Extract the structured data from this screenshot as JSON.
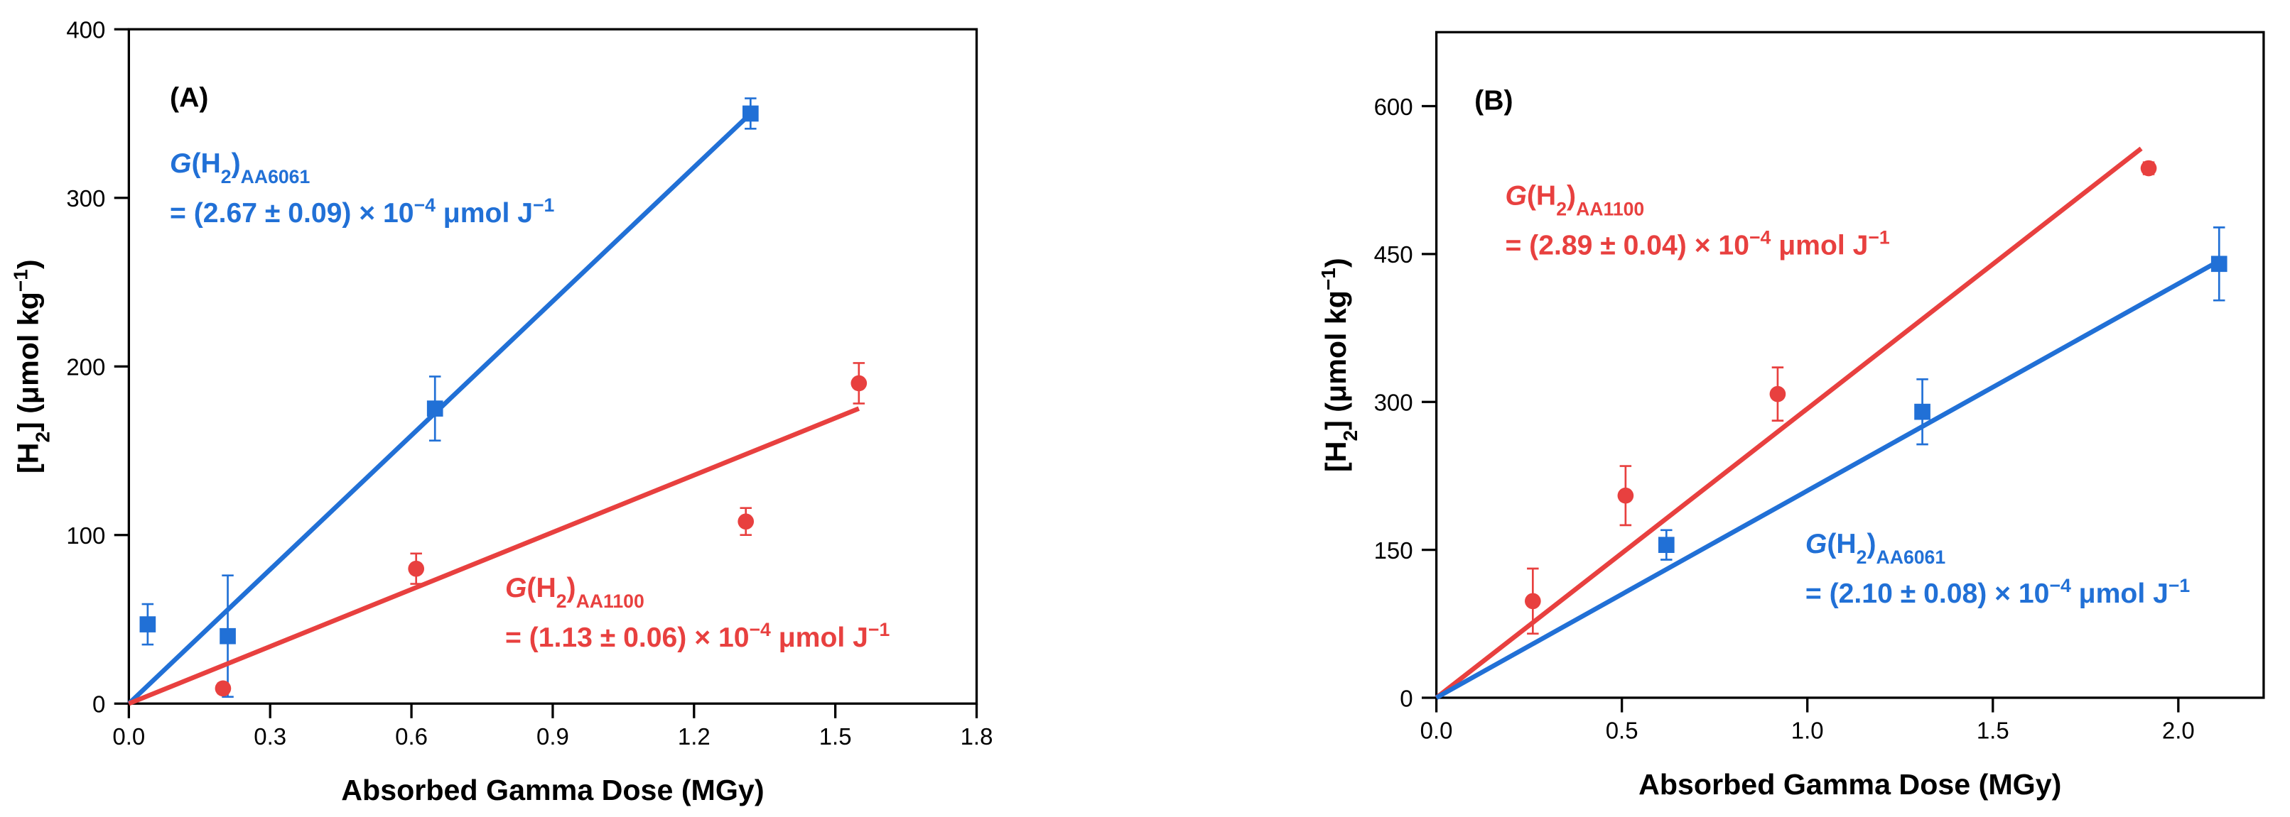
{
  "chart_data": [
    {
      "type": "scatter",
      "xlim": [
        0,
        1.8
      ],
      "xticks": [
        {
          "value": 0,
          "label": "0.0"
        },
        0.3,
        0.6,
        0.9,
        1.2,
        1.5,
        1.8
      ],
      "ylim": [
        0,
        400
      ],
      "yticks": [
        0,
        100,
        200,
        300,
        400
      ],
      "x_label": "Absorbed Gamma Dose (MGy)",
      "y_label": [
        {
          "text": "[H"
        },
        {
          "text": "2",
          "style": "sub"
        },
        {
          "text": "] (μmol kg"
        },
        {
          "text": "−1",
          "style": "sup"
        },
        {
          "text": ")"
        }
      ],
      "annotations": [
        {
          "color": "#000000",
          "lines": [
            [
              {
                "text": "(A)"
              }
            ]
          ]
        },
        {
          "color": "#2170d6",
          "lines": [
            [
              {
                "text": "G",
                "style": "italic"
              },
              {
                "text": "(H"
              },
              {
                "text": "2",
                "style": "sub"
              },
              {
                "text": ")"
              },
              {
                "text": "AA6061",
                "style": "sub"
              }
            ],
            [
              {
                "text": "= (2.67 ± 0.09) × 10"
              },
              {
                "text": "−4",
                "style": "sup"
              },
              {
                "text": " μmol J"
              },
              {
                "text": "−1",
                "style": "sup"
              }
            ]
          ]
        },
        {
          "color": "#e8403f",
          "lines": [
            [
              {
                "text": "G",
                "style": "italic"
              },
              {
                "text": "(H"
              },
              {
                "text": "2",
                "style": "sub"
              },
              {
                "text": ")"
              },
              {
                "text": "AA1100",
                "style": "sub"
              }
            ],
            [
              {
                "text": "= (1.13 ± 0.06) × 10"
              },
              {
                "text": "−4",
                "style": "sup"
              },
              {
                "text": " μmol J"
              },
              {
                "text": "−1",
                "style": "sup"
              }
            ]
          ]
        }
      ],
      "series": [
        {
          "color": "#2170d6",
          "marker": "square",
          "x": [
            0.04,
            0.21,
            0.65,
            1.32
          ],
          "values": [
            47,
            40,
            175,
            350
          ],
          "errors": [
            12,
            36,
            19,
            9
          ],
          "fit": {
            "x": [
              0,
              1.32
            ],
            "values": [
              0,
              350
            ]
          }
        },
        {
          "color": "#e8403f",
          "marker": "circle",
          "x": [
            0.2,
            0.61,
            1.31,
            1.55
          ],
          "values": [
            9,
            80,
            108,
            190
          ],
          "errors": [
            3,
            9,
            8,
            12
          ],
          "fit": {
            "x": [
              0,
              1.55
            ],
            "values": [
              0,
              175
            ]
          }
        }
      ]
    },
    {
      "type": "scatter",
      "xlim": [
        0,
        2.23
      ],
      "xticks": [
        {
          "value": 0,
          "label": "0.0"
        },
        0.5,
        {
          "value": 1,
          "label": "1.0"
        },
        1.5,
        {
          "value": 2,
          "label": "2.0"
        }
      ],
      "ylim": [
        0,
        675
      ],
      "yticks": [
        0,
        150,
        300,
        450,
        600
      ],
      "x_label": "Absorbed Gamma Dose (MGy)",
      "y_label": [
        {
          "text": "[H"
        },
        {
          "text": "2",
          "style": "sub"
        },
        {
          "text": "] (μmol kg"
        },
        {
          "text": "−1",
          "style": "sup"
        },
        {
          "text": ")"
        }
      ],
      "annotations": [
        {
          "color": "#000000",
          "lines": [
            [
              {
                "text": "(B)"
              }
            ]
          ]
        },
        {
          "color": "#e8403f",
          "lines": [
            [
              {
                "text": "G",
                "style": "italic"
              },
              {
                "text": "(H"
              },
              {
                "text": "2",
                "style": "sub"
              },
              {
                "text": ")"
              },
              {
                "text": "AA1100",
                "style": "sub"
              }
            ],
            [
              {
                "text": "= (2.89 ± 0.04) × 10"
              },
              {
                "text": "−4",
                "style": "sup"
              },
              {
                "text": " μmol J"
              },
              {
                "text": "−1",
                "style": "sup"
              }
            ]
          ]
        },
        {
          "color": "#2170d6",
          "lines": [
            [
              {
                "text": "G",
                "style": "italic"
              },
              {
                "text": "(H"
              },
              {
                "text": "2",
                "style": "sub"
              },
              {
                "text": ")"
              },
              {
                "text": "AA6061",
                "style": "sub"
              }
            ],
            [
              {
                "text": "= (2.10 ± 0.08) × 10"
              },
              {
                "text": "−4",
                "style": "sup"
              },
              {
                "text": " μmol J"
              },
              {
                "text": "−1",
                "style": "sup"
              }
            ]
          ]
        }
      ],
      "series": [
        {
          "color": "#e8403f",
          "marker": "circle",
          "x": [
            0.26,
            0.51,
            0.92,
            1.92
          ],
          "values": [
            98,
            205,
            308,
            537
          ],
          "errors": [
            33,
            30,
            27,
            6
          ],
          "fit": {
            "x": [
              0,
              1.9
            ],
            "values": [
              0,
              557
            ]
          }
        },
        {
          "color": "#2170d6",
          "marker": "square",
          "x": [
            0.62,
            1.31,
            2.11
          ],
          "values": [
            155,
            290,
            440
          ],
          "errors": [
            15,
            33,
            37
          ],
          "fit": {
            "x": [
              0,
              2.11
            ],
            "values": [
              0,
              443
            ]
          }
        }
      ]
    }
  ]
}
